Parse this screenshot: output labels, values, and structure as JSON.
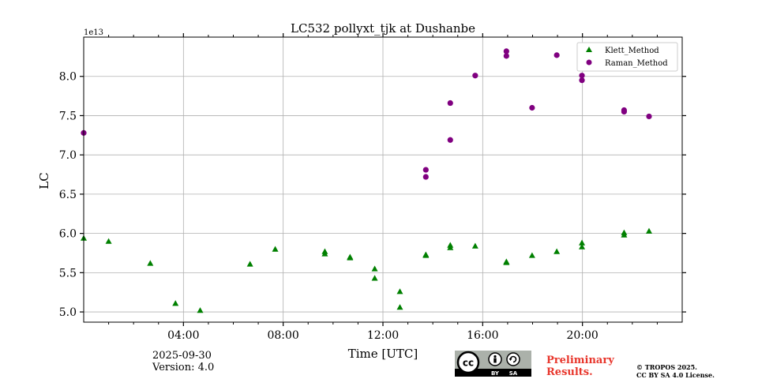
{
  "chart_data": {
    "type": "scatter",
    "title": "LC532 pollyxt_tjk at Dushanbe",
    "xlabel": "Time [UTC]",
    "ylabel": "LC",
    "y_scale_label": "1e13",
    "xlim_hours": [
      0,
      24
    ],
    "ylim": [
      4.87,
      8.5
    ],
    "x_ticks": [
      {
        "hour": 4,
        "label": "04:00"
      },
      {
        "hour": 8,
        "label": "08:00"
      },
      {
        "hour": 12,
        "label": "12:00"
      },
      {
        "hour": 16,
        "label": "16:00"
      },
      {
        "hour": 20,
        "label": "20:00"
      }
    ],
    "y_ticks": [
      {
        "value": 5.0,
        "label": "5.0"
      },
      {
        "value": 5.5,
        "label": "5.5"
      },
      {
        "value": 6.0,
        "label": "6.0"
      },
      {
        "value": 6.5,
        "label": "6.5"
      },
      {
        "value": 7.0,
        "label": "7.0"
      },
      {
        "value": 7.5,
        "label": "7.5"
      },
      {
        "value": 8.0,
        "label": "8.0"
      }
    ],
    "grid": true,
    "legend_position": "top-right",
    "series": [
      {
        "name": "Klett_Method",
        "marker": "triangle",
        "color": "#008000",
        "points": [
          [
            0.0,
            5.94
          ],
          [
            1.0,
            5.9
          ],
          [
            2.67,
            5.62
          ],
          [
            3.68,
            5.11
          ],
          [
            4.67,
            5.02
          ],
          [
            6.67,
            5.61
          ],
          [
            7.68,
            5.8
          ],
          [
            9.67,
            5.77
          ],
          [
            9.67,
            5.74
          ],
          [
            10.68,
            5.7
          ],
          [
            10.68,
            5.69
          ],
          [
            11.67,
            5.55
          ],
          [
            11.67,
            5.43
          ],
          [
            12.68,
            5.26
          ],
          [
            12.68,
            5.06
          ],
          [
            13.72,
            5.73
          ],
          [
            13.72,
            5.72
          ],
          [
            14.7,
            5.85
          ],
          [
            14.7,
            5.82
          ],
          [
            15.7,
            5.84
          ],
          [
            16.95,
            5.64
          ],
          [
            16.95,
            5.63
          ],
          [
            17.98,
            5.72
          ],
          [
            18.97,
            5.77
          ],
          [
            19.98,
            5.88
          ],
          [
            19.98,
            5.83
          ],
          [
            21.67,
            6.01
          ],
          [
            21.67,
            5.98
          ],
          [
            22.67,
            6.03
          ]
        ]
      },
      {
        "name": "Raman_Method",
        "marker": "circle",
        "color": "#800080",
        "points": [
          [
            0.0,
            7.28
          ],
          [
            13.72,
            6.81
          ],
          [
            13.72,
            6.72
          ],
          [
            14.7,
            7.66
          ],
          [
            14.7,
            7.19
          ],
          [
            15.7,
            8.01
          ],
          [
            16.95,
            8.32
          ],
          [
            16.95,
            8.26
          ],
          [
            17.98,
            7.6
          ],
          [
            18.97,
            8.27
          ],
          [
            19.98,
            8.01
          ],
          [
            19.98,
            7.95
          ],
          [
            21.67,
            7.57
          ],
          [
            21.67,
            7.55
          ],
          [
            22.67,
            7.49
          ]
        ]
      }
    ]
  },
  "footer": {
    "date": "2025-09-30",
    "version": "Version: 4.0",
    "preliminary_line1": "Preliminary",
    "preliminary_line2": "Results.",
    "copyright_line1": "© TROPOS 2025.",
    "copyright_line2": "CC BY SA 4.0 License.",
    "cc_badge_cc": "cc",
    "cc_badge_by": "BY",
    "cc_badge_sa": "SA"
  }
}
